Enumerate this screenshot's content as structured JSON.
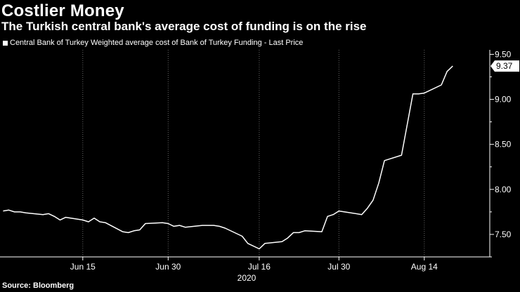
{
  "title": "Costlier Money",
  "subtitle": "The Turkish central bank's average cost of funding is on the rise",
  "source": "Source: Bloomberg",
  "colors": {
    "background": "#000000",
    "line": "#ffffff",
    "text": "#ffffff",
    "grid": "#666666"
  },
  "chart_data": {
    "type": "line",
    "title": "",
    "xlabel": "2020",
    "ylabel": "",
    "ylim": [
      7.25,
      9.55
    ],
    "y_ticks": [
      7.5,
      8.0,
      8.5,
      9.0,
      9.5
    ],
    "y_tick_labels": [
      "7.50",
      "8.00",
      "8.50",
      "9.00",
      "9.50"
    ],
    "y_minor_ticks": [
      7.25,
      7.75,
      8.25,
      8.75,
      9.25
    ],
    "x_tick_labels": [
      "Jun 15",
      "Jun 30",
      "Jul 16",
      "Jul 30",
      "Aug 14"
    ],
    "x_year_label": "2020",
    "grid": "vertical dotted",
    "last_value_label": "9.37",
    "series": [
      {
        "name": "Central Bank of Turkey Weighted average cost of Bank of Turkey Funding - Last Price",
        "x": [
          "2020-06-01",
          "2020-06-02",
          "2020-06-03",
          "2020-06-04",
          "2020-06-05",
          "2020-06-08",
          "2020-06-09",
          "2020-06-10",
          "2020-06-11",
          "2020-06-12",
          "2020-06-15",
          "2020-06-16",
          "2020-06-17",
          "2020-06-18",
          "2020-06-19",
          "2020-06-22",
          "2020-06-23",
          "2020-06-24",
          "2020-06-25",
          "2020-06-26",
          "2020-06-29",
          "2020-06-30",
          "2020-07-01",
          "2020-07-02",
          "2020-07-03",
          "2020-07-06",
          "2020-07-07",
          "2020-07-08",
          "2020-07-09",
          "2020-07-10",
          "2020-07-13",
          "2020-07-14",
          "2020-07-16",
          "2020-07-17",
          "2020-07-20",
          "2020-07-21",
          "2020-07-22",
          "2020-07-23",
          "2020-07-24",
          "2020-07-27",
          "2020-07-28",
          "2020-07-29",
          "2020-07-30",
          "2020-08-03",
          "2020-08-04",
          "2020-08-05",
          "2020-08-06",
          "2020-08-07",
          "2020-08-10",
          "2020-08-11",
          "2020-08-12",
          "2020-08-13",
          "2020-08-14",
          "2020-08-17",
          "2020-08-18",
          "2020-08-19"
        ],
        "values": [
          7.76,
          7.77,
          7.75,
          7.75,
          7.74,
          7.72,
          7.73,
          7.7,
          7.66,
          7.69,
          7.66,
          7.64,
          7.68,
          7.64,
          7.63,
          7.53,
          7.52,
          7.54,
          7.55,
          7.62,
          7.63,
          7.62,
          7.59,
          7.6,
          7.58,
          7.6,
          7.6,
          7.6,
          7.59,
          7.57,
          7.48,
          7.4,
          7.34,
          7.4,
          7.42,
          7.46,
          7.52,
          7.52,
          7.54,
          7.53,
          7.7,
          7.72,
          7.76,
          7.72,
          7.79,
          7.88,
          8.07,
          8.32,
          8.38,
          8.72,
          9.06,
          9.06,
          9.07,
          9.16,
          9.31,
          9.37
        ]
      }
    ]
  }
}
